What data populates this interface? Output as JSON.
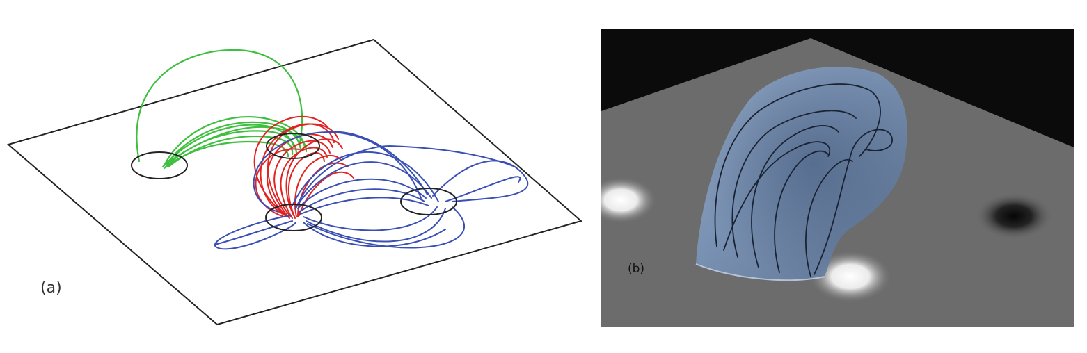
{
  "figure": {
    "panel_a": {
      "label": "(a)",
      "colors": {
        "outline": "#222222",
        "green_loops": "#3fbf3f",
        "red_loops": "#e32222",
        "blue_loops": "#3a4fb5"
      }
    },
    "panel_b": {
      "label": "(b)",
      "colors": {
        "sky": "#0b0b0b",
        "plane": "#6c6c6c",
        "surface": "#7a94b8",
        "field_lines": "#1a2333",
        "bright_spot": "#ffffff",
        "dark_spot": "#0a0a0a"
      }
    }
  }
}
